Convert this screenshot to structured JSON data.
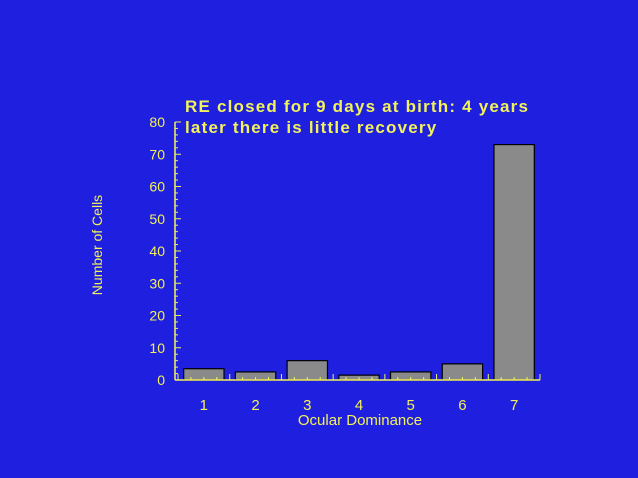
{
  "chart_data": {
    "type": "bar",
    "title_lines": [
      "RE closed for 9 days at birth: 4 years",
      "later  there is little recovery"
    ],
    "xlabel": "Ocular Dominance",
    "ylabel": "Number of Cells",
    "categories": [
      "1",
      "2",
      "3",
      "4",
      "5",
      "6",
      "7"
    ],
    "values": [
      3.5,
      2.5,
      6,
      1.5,
      2.5,
      5,
      73
    ],
    "ylim": [
      0,
      80
    ],
    "yticks": [
      "0",
      "10",
      "20",
      "30",
      "40",
      "50",
      "60",
      "70",
      "80"
    ],
    "grid": false,
    "colors": {
      "background": "#1f1fe0",
      "text": "#f2f25a",
      "axis": "#f2f25a",
      "bar_fill": "#8a8a8a",
      "bar_edge": "#000000"
    }
  }
}
